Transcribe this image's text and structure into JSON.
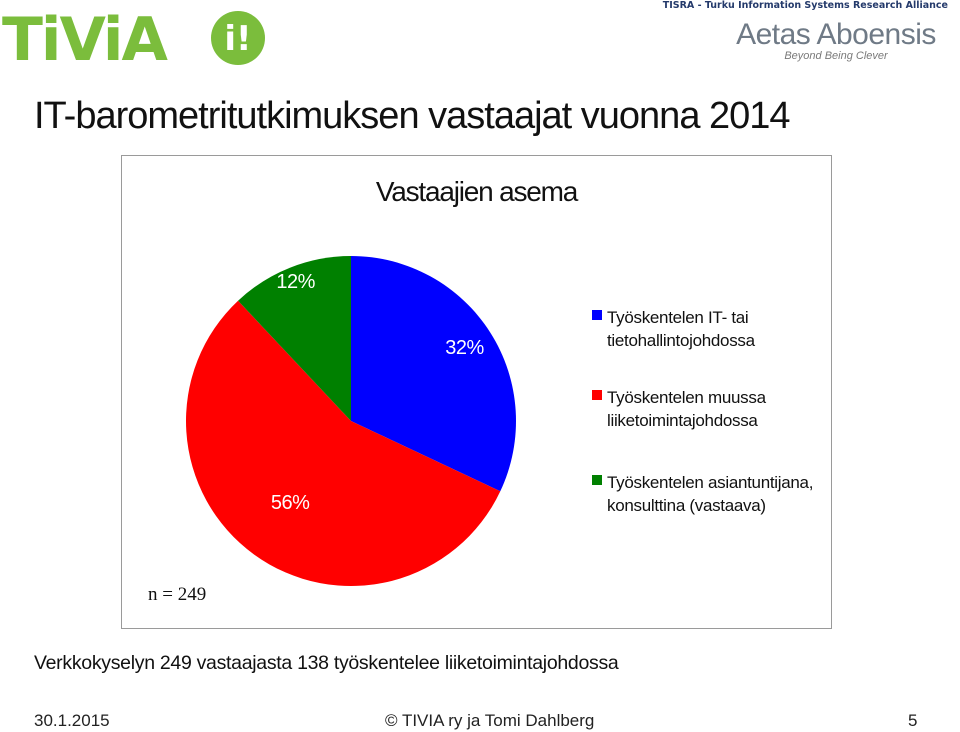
{
  "branding": {
    "tivia_logo_text": "TiViA",
    "tivia_green": "#7bbd3c",
    "tisra": "TISRA - Turku Information Systems Research Alliance",
    "aetas_name": "Aetas Aboensis",
    "aetas_motto": "Beyond Being Clever"
  },
  "slide": {
    "title": "IT-barometritutkimuksen vastaajat vuonna 2014",
    "note": "Verkkokyselyn 249 vastaajasta 138 työskentelee liiketoimintajohdossa"
  },
  "chart_data": {
    "type": "pie",
    "title": "Vastaajien asema",
    "categories": [
      "Työskentelen IT- tai tietohallintojohdossa",
      "Työskentelen muussa liiketoimintajohdossa",
      "Työskentelen asiantuntijana, konsulttina (vastaava)"
    ],
    "values": [
      32,
      56,
      12
    ],
    "labels": [
      "32%",
      "56%",
      "12%"
    ],
    "colors": [
      "#0000ff",
      "#ff0000",
      "#008000"
    ],
    "legend_position": "right",
    "annotation": "n = 249"
  },
  "footer": {
    "date": "30.1.2015",
    "credit": "©   TIVIA ry ja Tomi Dahlberg",
    "page": "5"
  }
}
